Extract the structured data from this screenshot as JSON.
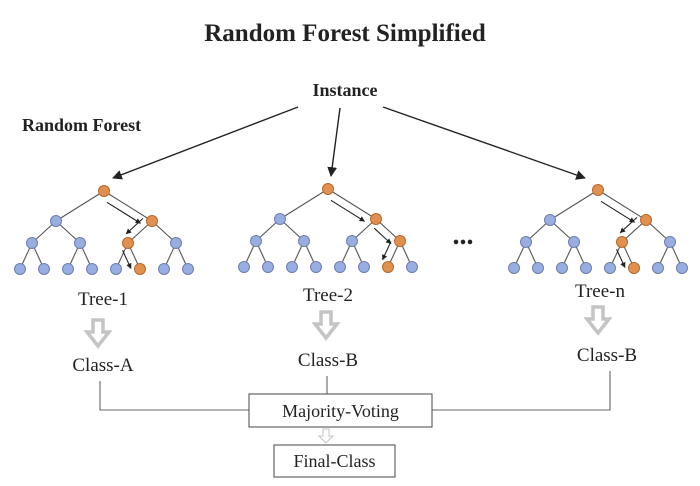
{
  "title": "Random Forest Simplified",
  "instance_label": "Instance",
  "forest_label": "Random Forest",
  "ellipsis": "...",
  "trees": [
    {
      "name": "Tree-1",
      "class": "Class-A"
    },
    {
      "name": "Tree-2",
      "class": "Class-B"
    },
    {
      "name": "Tree-n",
      "class": "Class-B"
    }
  ],
  "voting_label": "Majority-Voting",
  "final_label": "Final-Class",
  "colors": {
    "node_default": "#98aee0",
    "node_path": "#e0904f",
    "node_stroke": "#6c7fb0",
    "path_stroke": "#b8672c",
    "hollow_arrow": "#c4c4c4"
  }
}
